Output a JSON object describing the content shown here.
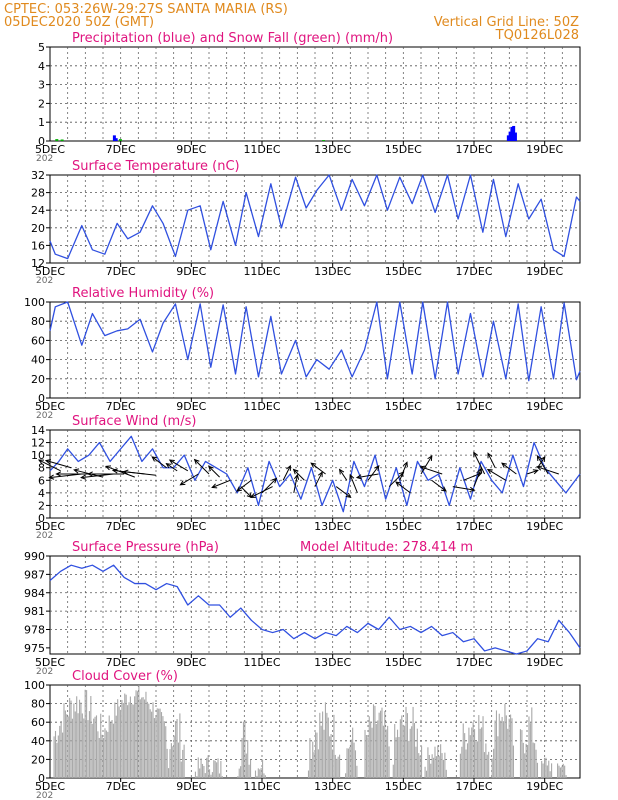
{
  "header": {
    "line1_left": "CPTEC:   053:26W-29:27S   SANTA MARIA (RS)",
    "line2_left": "05DEC2020 50Z (GMT)",
    "line1_right": "Vertical Grid Line: 50Z",
    "line2_right": "TQ0126L028"
  },
  "colors": {
    "header": "#e08a1e",
    "title": "#e0147f",
    "precip": "#0000ff",
    "snow": "#00b000",
    "line": "#3050e0",
    "cloud": "#a9a9a9",
    "wind_arrow": "#000000"
  },
  "x_axis": {
    "tick_labels": [
      "5DEC",
      "7DEC",
      "9DEC",
      "11DEC",
      "13DEC",
      "15DEC",
      "17DEC",
      "19DEC"
    ],
    "tick_days": [
      0,
      2,
      4,
      6,
      8,
      10,
      12,
      14
    ],
    "days_total": 15,
    "clipped_year_fragment": "202"
  },
  "chart_data": [
    {
      "id": "precip",
      "type": "bar",
      "title": "Precipitation (blue) and Snow Fall (green) (mm/h)",
      "ylim": [
        0,
        5
      ],
      "yticks": [
        "0",
        "1",
        "2",
        "3",
        "4",
        "5"
      ],
      "series": [
        {
          "name": "blue",
          "x": [
            1.78,
            1.83,
            12.93,
            12.98,
            13.03,
            13.08,
            13.13
          ],
          "values": [
            0.3,
            0.15,
            0.3,
            0.5,
            0.75,
            0.8,
            0.45
          ]
        },
        {
          "name": "green",
          "x": [
            0.15,
            0.3,
            1.95,
            7.7
          ],
          "values": [
            0.1,
            0.08,
            0.1,
            0.05
          ]
        }
      ]
    },
    {
      "id": "temp",
      "type": "line",
      "title": "Surface Temperature (nC)",
      "ylim": [
        12,
        32
      ],
      "yticks": [
        "12",
        "16",
        "20",
        "24",
        "28",
        "32"
      ],
      "x": [
        0,
        0.15,
        0.5,
        0.9,
        1.2,
        1.55,
        1.9,
        2.2,
        2.55,
        2.9,
        3.2,
        3.55,
        3.9,
        4.25,
        4.55,
        4.9,
        5.25,
        5.55,
        5.9,
        6.25,
        6.55,
        6.95,
        7.25,
        7.55,
        7.9,
        8.25,
        8.55,
        8.9,
        9.25,
        9.55,
        9.9,
        10.25,
        10.55,
        10.9,
        11.25,
        11.55,
        11.9,
        12.25,
        12.55,
        12.9,
        13.25,
        13.55,
        13.9,
        14.25,
        14.55,
        14.9,
        15
      ],
      "values": [
        17,
        14,
        13,
        20.5,
        15,
        14,
        21,
        17.5,
        19,
        25,
        21,
        13.5,
        24,
        25,
        15,
        26,
        16,
        28,
        18,
        30,
        20,
        31.5,
        24.5,
        28.5,
        32,
        24,
        31,
        25,
        32,
        24,
        31.5,
        25.5,
        32,
        23.5,
        32,
        22,
        32,
        19,
        31,
        18,
        30,
        22,
        26.5,
        15,
        13.5,
        27,
        26
      ]
    },
    {
      "id": "rh",
      "type": "line",
      "title": "Relative Humidity (%)",
      "ylim": [
        0,
        100
      ],
      "yticks": [
        "0",
        "20",
        "40",
        "60",
        "80",
        "100"
      ],
      "x": [
        0,
        0.15,
        0.5,
        0.9,
        1.2,
        1.55,
        1.9,
        2.2,
        2.55,
        2.9,
        3.2,
        3.55,
        3.9,
        4.25,
        4.55,
        4.9,
        5.25,
        5.55,
        5.9,
        6.25,
        6.55,
        6.95,
        7.25,
        7.55,
        7.9,
        8.25,
        8.55,
        8.9,
        9.25,
        9.55,
        9.9,
        10.25,
        10.55,
        10.9,
        11.25,
        11.55,
        11.9,
        12.25,
        12.55,
        12.9,
        13.25,
        13.55,
        13.9,
        14.25,
        14.55,
        14.9,
        15
      ],
      "values": [
        70,
        95,
        100,
        55,
        88,
        65,
        70,
        72,
        82,
        48,
        78,
        98,
        40,
        98,
        32,
        97,
        25,
        95,
        22,
        85,
        25,
        60,
        22,
        40,
        30,
        50,
        22,
        50,
        100,
        20,
        100,
        25,
        100,
        20,
        100,
        25,
        88,
        22,
        80,
        20,
        98,
        18,
        95,
        20,
        99,
        19,
        28
      ]
    },
    {
      "id": "wind",
      "type": "line",
      "title": "Surface Wind (m/s)",
      "ylim": [
        0,
        14
      ],
      "yticks": [
        "0",
        "2",
        "4",
        "6",
        "8",
        "10",
        "12",
        "14"
      ],
      "x": [
        0,
        0.25,
        0.5,
        0.8,
        1.1,
        1.4,
        1.7,
        2,
        2.3,
        2.6,
        2.9,
        3.2,
        3.5,
        3.8,
        4.1,
        4.4,
        4.7,
        5,
        5.3,
        5.6,
        5.9,
        6.2,
        6.5,
        6.8,
        7.1,
        7.4,
        7.7,
        8,
        8.3,
        8.6,
        8.9,
        9.2,
        9.5,
        9.8,
        10.1,
        10.4,
        10.7,
        11,
        11.3,
        11.6,
        11.9,
        12.2,
        12.5,
        12.8,
        13.1,
        13.4,
        13.7,
        14,
        14.3,
        14.6,
        15
      ],
      "values": [
        7.5,
        9,
        11,
        9,
        10,
        12,
        9,
        11,
        13,
        9,
        11,
        8,
        8,
        10,
        6,
        9,
        8,
        7,
        4,
        8,
        2,
        9,
        5,
        7,
        3,
        8,
        2,
        6,
        1,
        9,
        5,
        10,
        3,
        8,
        2,
        9,
        6,
        7,
        2,
        8,
        3,
        9,
        6,
        4,
        10,
        5,
        12,
        8,
        6,
        4,
        7
      ],
      "arrows": {
        "x": [
          0.3,
          0.6,
          0.9,
          1.2,
          1.5,
          1.8,
          2.1,
          2.4,
          2.7,
          3.0,
          3.3,
          3.6,
          3.9,
          4.2,
          4.5,
          4.8,
          5.1,
          5.4,
          5.7,
          6.0,
          6.3,
          6.6,
          6.9,
          7.2,
          7.5,
          7.8,
          8.1,
          8.4,
          8.7,
          9.0,
          9.3,
          9.6,
          9.9,
          10.2,
          10.5,
          10.8,
          11.1,
          11.4,
          11.7,
          12.0,
          12.3,
          12.6,
          12.9,
          13.2,
          13.5,
          13.8,
          14.1,
          14.4
        ],
        "y": [
          7.5,
          8,
          7,
          7,
          6.5,
          7,
          7,
          6.5,
          7,
          6.8,
          8,
          7.5,
          7.5,
          7,
          7,
          6.5,
          6,
          5,
          6,
          4,
          5,
          6,
          4,
          6,
          5,
          7,
          5,
          6,
          4,
          6,
          7,
          5,
          6,
          4,
          7,
          6,
          7,
          5,
          6,
          5,
          7,
          8,
          6,
          7,
          7,
          8,
          7,
          7
        ],
        "u": [
          -0.6,
          -0.7,
          -0.9,
          -1,
          -0.8,
          -0.9,
          -1,
          -0.8,
          -0.9,
          -0.9,
          -0.4,
          -0.3,
          -0.5,
          -0.5,
          -0.4,
          -0.3,
          -0.5,
          0.3,
          -0.4,
          0.4,
          -0.6,
          0.2,
          0.1,
          -0.3,
          0.2,
          -0.4,
          0.4,
          -0.2,
          -0.2,
          0.3,
          -0.6,
          0.4,
          0.2,
          -0.4,
          0.3,
          0.4,
          -0.6,
          0.6,
          0.5,
          0.2,
          -0.3,
          -0.2,
          -0.5,
          -0.4,
          0.3,
          0.2,
          -0.3,
          -0.6
        ],
        "v": [
          0.3,
          0.2,
          -0.1,
          0,
          0.2,
          -0.1,
          0,
          0.3,
          0.1,
          0.1,
          0.3,
          0.2,
          0.3,
          -0.3,
          0.4,
          0.3,
          -0.2,
          -0.3,
          -0.3,
          0.4,
          -0.3,
          0.4,
          0.5,
          0.3,
          0.4,
          0.3,
          -0.3,
          0.3,
          0.5,
          0.4,
          -0.1,
          0.4,
          0.5,
          0.3,
          0.5,
          -0.3,
          0.2,
          -0.1,
          0.2,
          0.5,
          0.6,
          0.4,
          0.3,
          0.3,
          0.1,
          0.3,
          0.5,
          0.2
        ]
      }
    },
    {
      "id": "pressure",
      "type": "line",
      "title": "Surface Pressure (hPa)",
      "subtitle": "Model Altitude: 278.414 m",
      "ylim": [
        974,
        990
      ],
      "yticks": [
        "975",
        "978",
        "981",
        "984",
        "987",
        "990"
      ],
      "x": [
        0,
        0.3,
        0.6,
        0.9,
        1.2,
        1.5,
        1.8,
        2.1,
        2.4,
        2.7,
        3.0,
        3.3,
        3.6,
        3.9,
        4.2,
        4.5,
        4.8,
        5.1,
        5.4,
        5.7,
        6.0,
        6.3,
        6.6,
        6.9,
        7.2,
        7.5,
        7.8,
        8.1,
        8.4,
        8.7,
        9.0,
        9.3,
        9.6,
        9.9,
        10.2,
        10.5,
        10.8,
        11.1,
        11.4,
        11.7,
        12.0,
        12.3,
        12.6,
        12.9,
        13.2,
        13.5,
        13.8,
        14.1,
        14.4,
        14.7,
        15
      ],
      "values": [
        986,
        987.5,
        988.5,
        988,
        988.5,
        987.5,
        988.5,
        986.5,
        985.5,
        985.5,
        984.5,
        985.5,
        985,
        982,
        983.5,
        982,
        982,
        980,
        981.5,
        979.5,
        978,
        977.5,
        978,
        976.5,
        977.5,
        976.5,
        977.5,
        977,
        978.5,
        977.5,
        979,
        978,
        980,
        978,
        978.5,
        977.5,
        978.5,
        977,
        977.5,
        976,
        976.5,
        974.5,
        975,
        974.5,
        974,
        974.5,
        976.5,
        976,
        979.5,
        977.5,
        975
      ]
    },
    {
      "id": "cloud",
      "type": "bar",
      "title": "Cloud Cover (%)",
      "ylim": [
        0,
        100
      ],
      "yticks": [
        "0",
        "20",
        "40",
        "60",
        "80",
        "100"
      ],
      "segments": [
        {
          "start": 0.1,
          "end": 1.5,
          "level": 82,
          "var": 18
        },
        {
          "start": 1.5,
          "end": 3.3,
          "level": 90,
          "var": 12
        },
        {
          "start": 3.3,
          "end": 3.8,
          "level": 52,
          "var": 25
        },
        {
          "start": 4.1,
          "end": 4.9,
          "level": 15,
          "var": 12
        },
        {
          "start": 5.3,
          "end": 5.7,
          "level": 45,
          "var": 25
        },
        {
          "start": 5.8,
          "end": 6.1,
          "level": 15,
          "var": 10
        },
        {
          "start": 7.3,
          "end": 8.2,
          "level": 60,
          "var": 25
        },
        {
          "start": 8.35,
          "end": 8.7,
          "level": 40,
          "var": 18
        },
        {
          "start": 8.9,
          "end": 9.6,
          "level": 62,
          "var": 22
        },
        {
          "start": 9.7,
          "end": 10.5,
          "level": 60,
          "var": 22
        },
        {
          "start": 10.6,
          "end": 11.2,
          "level": 30,
          "var": 12
        },
        {
          "start": 11.6,
          "end": 12.4,
          "level": 60,
          "var": 22
        },
        {
          "start": 12.5,
          "end": 13.1,
          "level": 72,
          "var": 20
        },
        {
          "start": 13.3,
          "end": 13.8,
          "level": 55,
          "var": 25
        },
        {
          "start": 13.9,
          "end": 14.2,
          "level": 18,
          "var": 10
        },
        {
          "start": 14.35,
          "end": 14.6,
          "level": 15,
          "var": 8
        }
      ]
    }
  ]
}
